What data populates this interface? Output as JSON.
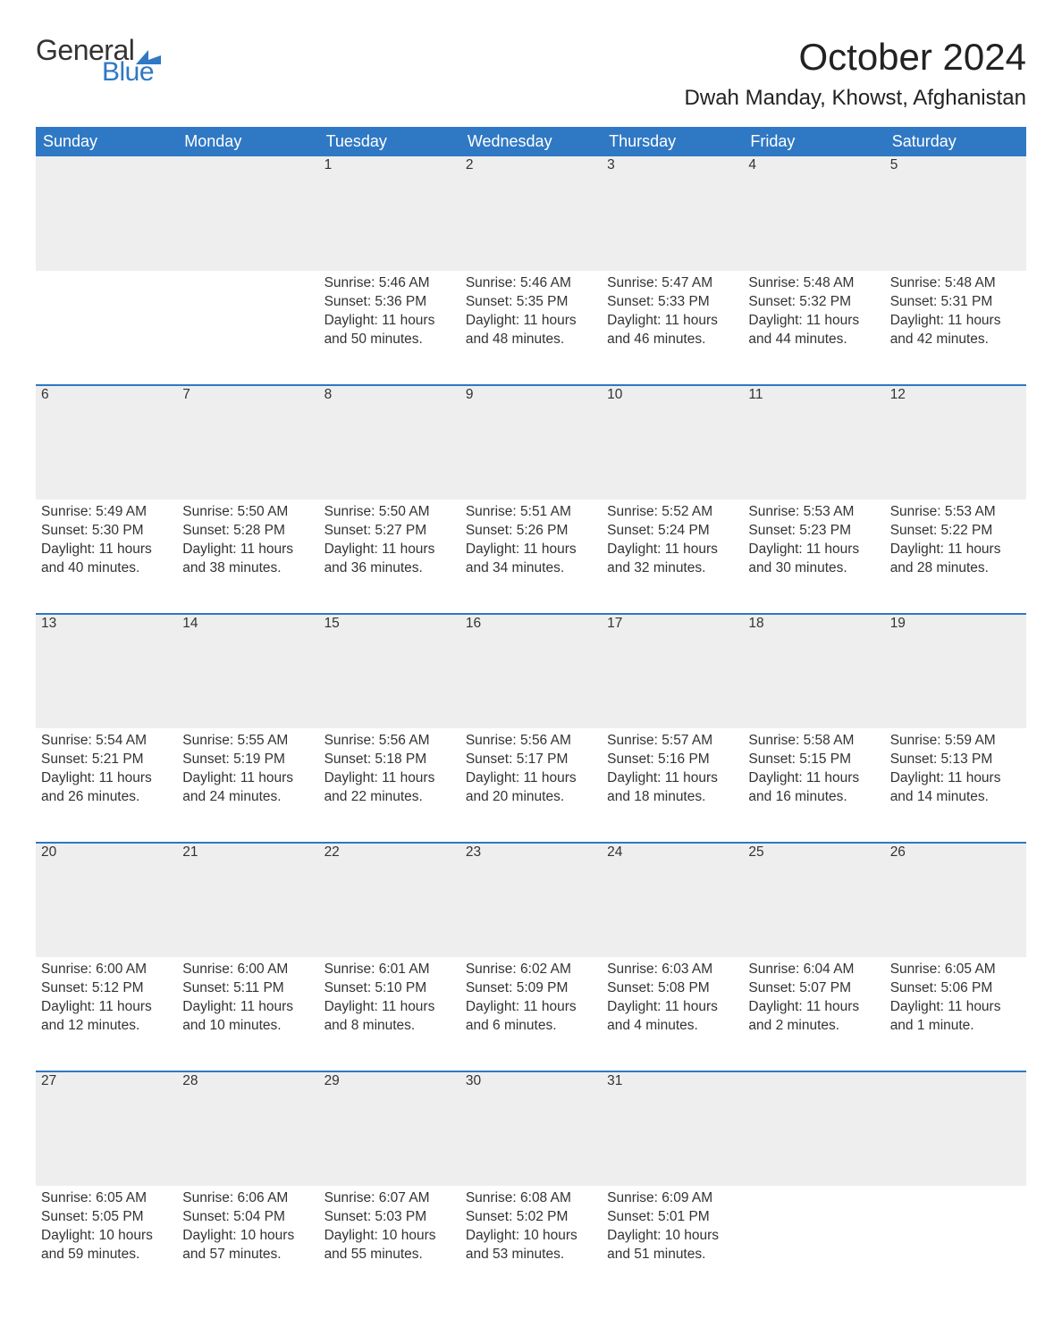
{
  "logo": {
    "text_general": "General",
    "text_blue": "Blue",
    "flag_color": "#2f78c4"
  },
  "header": {
    "month_title": "October 2024",
    "location": "Dwah Manday, Khowst, Afghanistan"
  },
  "styling": {
    "header_bg": "#2f78c4",
    "header_text_color": "#ffffff",
    "daynum_bg": "#eeeeee",
    "daynum_border_top": "#2f78c4",
    "body_text_color": "#333333",
    "page_bg": "#ffffff",
    "month_title_fontsize": 42,
    "location_fontsize": 24,
    "weekday_fontsize": 18,
    "daynum_fontsize": 18,
    "cell_fontsize": 15.5
  },
  "weekdays": [
    "Sunday",
    "Monday",
    "Tuesday",
    "Wednesday",
    "Thursday",
    "Friday",
    "Saturday"
  ],
  "weeks": [
    [
      {
        "day": "",
        "sunrise": "",
        "sunset": "",
        "daylight": ""
      },
      {
        "day": "",
        "sunrise": "",
        "sunset": "",
        "daylight": ""
      },
      {
        "day": "1",
        "sunrise": "Sunrise: 5:46 AM",
        "sunset": "Sunset: 5:36 PM",
        "daylight": "Daylight: 11 hours and 50 minutes."
      },
      {
        "day": "2",
        "sunrise": "Sunrise: 5:46 AM",
        "sunset": "Sunset: 5:35 PM",
        "daylight": "Daylight: 11 hours and 48 minutes."
      },
      {
        "day": "3",
        "sunrise": "Sunrise: 5:47 AM",
        "sunset": "Sunset: 5:33 PM",
        "daylight": "Daylight: 11 hours and 46 minutes."
      },
      {
        "day": "4",
        "sunrise": "Sunrise: 5:48 AM",
        "sunset": "Sunset: 5:32 PM",
        "daylight": "Daylight: 11 hours and 44 minutes."
      },
      {
        "day": "5",
        "sunrise": "Sunrise: 5:48 AM",
        "sunset": "Sunset: 5:31 PM",
        "daylight": "Daylight: 11 hours and 42 minutes."
      }
    ],
    [
      {
        "day": "6",
        "sunrise": "Sunrise: 5:49 AM",
        "sunset": "Sunset: 5:30 PM",
        "daylight": "Daylight: 11 hours and 40 minutes."
      },
      {
        "day": "7",
        "sunrise": "Sunrise: 5:50 AM",
        "sunset": "Sunset: 5:28 PM",
        "daylight": "Daylight: 11 hours and 38 minutes."
      },
      {
        "day": "8",
        "sunrise": "Sunrise: 5:50 AM",
        "sunset": "Sunset: 5:27 PM",
        "daylight": "Daylight: 11 hours and 36 minutes."
      },
      {
        "day": "9",
        "sunrise": "Sunrise: 5:51 AM",
        "sunset": "Sunset: 5:26 PM",
        "daylight": "Daylight: 11 hours and 34 minutes."
      },
      {
        "day": "10",
        "sunrise": "Sunrise: 5:52 AM",
        "sunset": "Sunset: 5:24 PM",
        "daylight": "Daylight: 11 hours and 32 minutes."
      },
      {
        "day": "11",
        "sunrise": "Sunrise: 5:53 AM",
        "sunset": "Sunset: 5:23 PM",
        "daylight": "Daylight: 11 hours and 30 minutes."
      },
      {
        "day": "12",
        "sunrise": "Sunrise: 5:53 AM",
        "sunset": "Sunset: 5:22 PM",
        "daylight": "Daylight: 11 hours and 28 minutes."
      }
    ],
    [
      {
        "day": "13",
        "sunrise": "Sunrise: 5:54 AM",
        "sunset": "Sunset: 5:21 PM",
        "daylight": "Daylight: 11 hours and 26 minutes."
      },
      {
        "day": "14",
        "sunrise": "Sunrise: 5:55 AM",
        "sunset": "Sunset: 5:19 PM",
        "daylight": "Daylight: 11 hours and 24 minutes."
      },
      {
        "day": "15",
        "sunrise": "Sunrise: 5:56 AM",
        "sunset": "Sunset: 5:18 PM",
        "daylight": "Daylight: 11 hours and 22 minutes."
      },
      {
        "day": "16",
        "sunrise": "Sunrise: 5:56 AM",
        "sunset": "Sunset: 5:17 PM",
        "daylight": "Daylight: 11 hours and 20 minutes."
      },
      {
        "day": "17",
        "sunrise": "Sunrise: 5:57 AM",
        "sunset": "Sunset: 5:16 PM",
        "daylight": "Daylight: 11 hours and 18 minutes."
      },
      {
        "day": "18",
        "sunrise": "Sunrise: 5:58 AM",
        "sunset": "Sunset: 5:15 PM",
        "daylight": "Daylight: 11 hours and 16 minutes."
      },
      {
        "day": "19",
        "sunrise": "Sunrise: 5:59 AM",
        "sunset": "Sunset: 5:13 PM",
        "daylight": "Daylight: 11 hours and 14 minutes."
      }
    ],
    [
      {
        "day": "20",
        "sunrise": "Sunrise: 6:00 AM",
        "sunset": "Sunset: 5:12 PM",
        "daylight": "Daylight: 11 hours and 12 minutes."
      },
      {
        "day": "21",
        "sunrise": "Sunrise: 6:00 AM",
        "sunset": "Sunset: 5:11 PM",
        "daylight": "Daylight: 11 hours and 10 minutes."
      },
      {
        "day": "22",
        "sunrise": "Sunrise: 6:01 AM",
        "sunset": "Sunset: 5:10 PM",
        "daylight": "Daylight: 11 hours and 8 minutes."
      },
      {
        "day": "23",
        "sunrise": "Sunrise: 6:02 AM",
        "sunset": "Sunset: 5:09 PM",
        "daylight": "Daylight: 11 hours and 6 minutes."
      },
      {
        "day": "24",
        "sunrise": "Sunrise: 6:03 AM",
        "sunset": "Sunset: 5:08 PM",
        "daylight": "Daylight: 11 hours and 4 minutes."
      },
      {
        "day": "25",
        "sunrise": "Sunrise: 6:04 AM",
        "sunset": "Sunset: 5:07 PM",
        "daylight": "Daylight: 11 hours and 2 minutes."
      },
      {
        "day": "26",
        "sunrise": "Sunrise: 6:05 AM",
        "sunset": "Sunset: 5:06 PM",
        "daylight": "Daylight: 11 hours and 1 minute."
      }
    ],
    [
      {
        "day": "27",
        "sunrise": "Sunrise: 6:05 AM",
        "sunset": "Sunset: 5:05 PM",
        "daylight": "Daylight: 10 hours and 59 minutes."
      },
      {
        "day": "28",
        "sunrise": "Sunrise: 6:06 AM",
        "sunset": "Sunset: 5:04 PM",
        "daylight": "Daylight: 10 hours and 57 minutes."
      },
      {
        "day": "29",
        "sunrise": "Sunrise: 6:07 AM",
        "sunset": "Sunset: 5:03 PM",
        "daylight": "Daylight: 10 hours and 55 minutes."
      },
      {
        "day": "30",
        "sunrise": "Sunrise: 6:08 AM",
        "sunset": "Sunset: 5:02 PM",
        "daylight": "Daylight: 10 hours and 53 minutes."
      },
      {
        "day": "31",
        "sunrise": "Sunrise: 6:09 AM",
        "sunset": "Sunset: 5:01 PM",
        "daylight": "Daylight: 10 hours and 51 minutes."
      },
      {
        "day": "",
        "sunrise": "",
        "sunset": "",
        "daylight": ""
      },
      {
        "day": "",
        "sunrise": "",
        "sunset": "",
        "daylight": ""
      }
    ]
  ]
}
